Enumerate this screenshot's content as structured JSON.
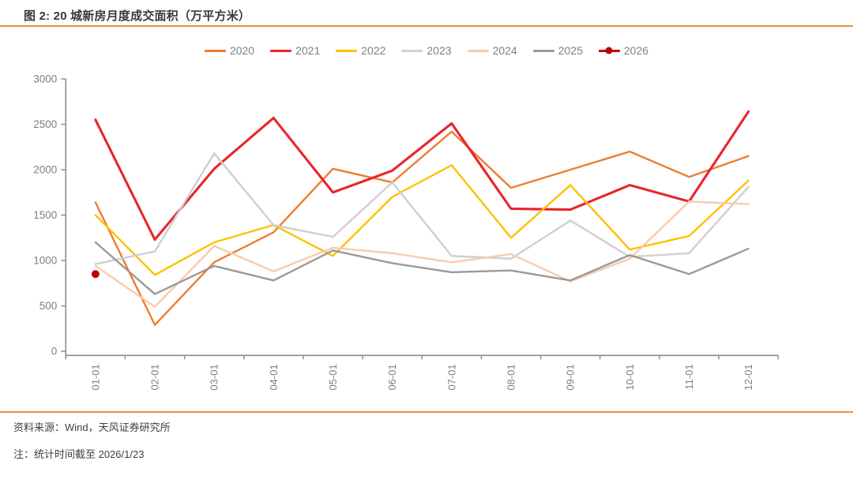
{
  "figure": {
    "title": "图 2: 20 城新房月度成交面积（万平方米）",
    "source_note": "资料来源：Wind，天风证券研究所",
    "footnote": "注：统计时间截至 2026/1/23"
  },
  "colors": {
    "accent_rule": "#ee8f3a",
    "axis_line": "#8a8a8a",
    "tick_label": "#7f7f7f",
    "title_text": "#3b3838",
    "footer_text": "#3f3f3f"
  },
  "chart_data": {
    "type": "line",
    "title": "20 城新房月度成交面积（万平方米）",
    "xlabel": "",
    "ylabel": "",
    "categories": [
      "01-01",
      "02-01",
      "03-01",
      "04-01",
      "05-01",
      "06-01",
      "07-01",
      "08-01",
      "09-01",
      "10-01",
      "11-01",
      "12-01"
    ],
    "ylim": [
      0,
      3000
    ],
    "yticks": [
      0,
      500,
      1000,
      1500,
      2000,
      2500,
      3000
    ],
    "grid": false,
    "legend_position": "top",
    "series": [
      {
        "name": "2020",
        "color": "#ED7D31",
        "width": 2.4,
        "marker": "none",
        "values": [
          1640,
          290,
          980,
          1310,
          2010,
          1860,
          2420,
          1800,
          2000,
          2200,
          1920,
          2150
        ]
      },
      {
        "name": "2021",
        "color": "#E8262B",
        "width": 3.1,
        "marker": "none",
        "values": [
          2550,
          1230,
          2010,
          2570,
          1750,
          1990,
          2510,
          1570,
          1560,
          1830,
          1650,
          2640
        ]
      },
      {
        "name": "2022",
        "color": "#FFC000",
        "width": 2.4,
        "marker": "none",
        "values": [
          1500,
          840,
          1200,
          1390,
          1050,
          1700,
          2050,
          1250,
          1830,
          1120,
          1270,
          1880
        ]
      },
      {
        "name": "2023",
        "color": "#CFCFCF",
        "width": 2.4,
        "marker": "none",
        "values": [
          960,
          1100,
          2180,
          1390,
          1260,
          1860,
          1050,
          1020,
          1440,
          1040,
          1080,
          1810
        ]
      },
      {
        "name": "2024",
        "color": "#F8CBAD",
        "width": 2.4,
        "marker": "none",
        "values": [
          940,
          490,
          1160,
          880,
          1140,
          1080,
          980,
          1070,
          770,
          1020,
          1650,
          1620
        ]
      },
      {
        "name": "2025",
        "color": "#9A9A9A",
        "width": 2.4,
        "marker": "none",
        "values": [
          1200,
          630,
          940,
          780,
          1110,
          970,
          870,
          890,
          780,
          1060,
          850,
          1130
        ]
      },
      {
        "name": "2026",
        "color": "#C00000",
        "width": 3.0,
        "marker": "circle",
        "values": [
          850,
          null,
          null,
          null,
          null,
          null,
          null,
          null,
          null,
          null,
          null,
          null
        ]
      }
    ]
  }
}
